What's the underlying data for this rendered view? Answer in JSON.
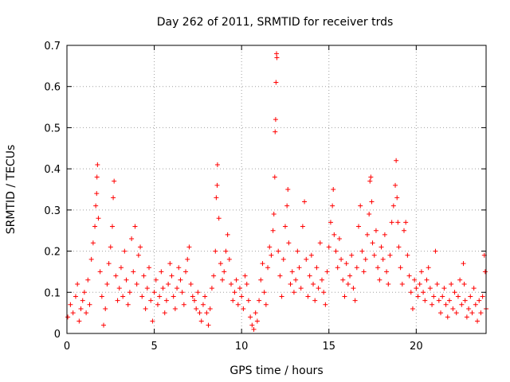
{
  "chart_data": {
    "type": "scatter",
    "title": "Day 262 of 2011, SRMTID for receiver trds",
    "xlabel": "GPS time / hours",
    "ylabel": "SRMTID / TECUs",
    "xlim": [
      0,
      24
    ],
    "ylim": [
      0,
      0.7
    ],
    "x_ticks": [
      "0",
      "5",
      "10",
      "15",
      "20"
    ],
    "y_ticks": [
      "0",
      "0.1",
      "0.2",
      "0.3",
      "0.4",
      "0.5",
      "0.6",
      "0.7"
    ],
    "grid": true,
    "marker": "+",
    "color": "#ff0000",
    "series": [
      {
        "name": "SRMTID",
        "points": [
          [
            0.05,
            0.04
          ],
          [
            0.2,
            0.07
          ],
          [
            0.35,
            0.05
          ],
          [
            0.5,
            0.09
          ],
          [
            0.6,
            0.12
          ],
          [
            0.7,
            0.03
          ],
          [
            0.8,
            0.06
          ],
          [
            0.9,
            0.08
          ],
          [
            1.0,
            0.1
          ],
          [
            1.1,
            0.05
          ],
          [
            1.2,
            0.13
          ],
          [
            1.3,
            0.07
          ],
          [
            1.4,
            0.18
          ],
          [
            1.5,
            0.22
          ],
          [
            1.6,
            0.26
          ],
          [
            1.65,
            0.31
          ],
          [
            1.7,
            0.34
          ],
          [
            1.72,
            0.38
          ],
          [
            1.75,
            0.41
          ],
          [
            1.8,
            0.28
          ],
          [
            1.9,
            0.15
          ],
          [
            2.0,
            0.09
          ],
          [
            2.1,
            0.02
          ],
          [
            2.2,
            0.06
          ],
          [
            2.3,
            0.12
          ],
          [
            2.4,
            0.17
          ],
          [
            2.5,
            0.21
          ],
          [
            2.6,
            0.26
          ],
          [
            2.65,
            0.33
          ],
          [
            2.7,
            0.37
          ],
          [
            2.8,
            0.14
          ],
          [
            2.9,
            0.08
          ],
          [
            3.0,
            0.11
          ],
          [
            3.1,
            0.16
          ],
          [
            3.2,
            0.09
          ],
          [
            3.3,
            0.2
          ],
          [
            3.4,
            0.13
          ],
          [
            3.5,
            0.07
          ],
          [
            3.6,
            0.1
          ],
          [
            3.7,
            0.23
          ],
          [
            3.8,
            0.15
          ],
          [
            3.9,
            0.26
          ],
          [
            4.0,
            0.12
          ],
          [
            4.1,
            0.19
          ],
          [
            4.2,
            0.21
          ],
          [
            4.3,
            0.09
          ],
          [
            4.4,
            0.14
          ],
          [
            4.5,
            0.06
          ],
          [
            4.6,
            0.11
          ],
          [
            4.7,
            0.16
          ],
          [
            4.8,
            0.08
          ],
          [
            4.9,
            0.03
          ],
          [
            5.0,
            0.1
          ],
          [
            5.1,
            0.13
          ],
          [
            5.2,
            0.07
          ],
          [
            5.3,
            0.09
          ],
          [
            5.4,
            0.15
          ],
          [
            5.5,
            0.11
          ],
          [
            5.6,
            0.05
          ],
          [
            5.7,
            0.08
          ],
          [
            5.8,
            0.12
          ],
          [
            5.9,
            0.17
          ],
          [
            6.0,
            0.14
          ],
          [
            6.1,
            0.09
          ],
          [
            6.2,
            0.06
          ],
          [
            6.3,
            0.11
          ],
          [
            6.4,
            0.16
          ],
          [
            6.5,
            0.13
          ],
          [
            6.6,
            0.1
          ],
          [
            6.7,
            0.07
          ],
          [
            6.8,
            0.15
          ],
          [
            6.9,
            0.18
          ],
          [
            7.0,
            0.21
          ],
          [
            7.1,
            0.12
          ],
          [
            7.2,
            0.09
          ],
          [
            7.3,
            0.08
          ],
          [
            7.4,
            0.06
          ],
          [
            7.5,
            0.1
          ],
          [
            7.6,
            0.05
          ],
          [
            7.7,
            0.03
          ],
          [
            7.8,
            0.07
          ],
          [
            7.9,
            0.09
          ],
          [
            8.0,
            0.05
          ],
          [
            8.1,
            0.02
          ],
          [
            8.2,
            0.06
          ],
          [
            8.3,
            0.11
          ],
          [
            8.4,
            0.14
          ],
          [
            8.5,
            0.2
          ],
          [
            8.55,
            0.33
          ],
          [
            8.6,
            0.36
          ],
          [
            8.62,
            0.41
          ],
          [
            8.7,
            0.28
          ],
          [
            8.8,
            0.17
          ],
          [
            8.9,
            0.13
          ],
          [
            9.0,
            0.15
          ],
          [
            9.1,
            0.2
          ],
          [
            9.2,
            0.24
          ],
          [
            9.3,
            0.18
          ],
          [
            9.4,
            0.12
          ],
          [
            9.5,
            0.08
          ],
          [
            9.6,
            0.1
          ],
          [
            9.7,
            0.13
          ],
          [
            9.8,
            0.07
          ],
          [
            9.9,
            0.11
          ],
          [
            10.0,
            0.09
          ],
          [
            10.1,
            0.06
          ],
          [
            10.2,
            0.14
          ],
          [
            10.3,
            0.12
          ],
          [
            10.4,
            0.08
          ],
          [
            10.5,
            0.04
          ],
          [
            10.6,
            0.02
          ],
          [
            10.7,
            0.01
          ],
          [
            10.8,
            0.05
          ],
          [
            10.9,
            0.03
          ],
          [
            11.0,
            0.08
          ],
          [
            11.1,
            0.13
          ],
          [
            11.2,
            0.17
          ],
          [
            11.3,
            0.1
          ],
          [
            11.4,
            0.07
          ],
          [
            11.5,
            0.16
          ],
          [
            11.6,
            0.21
          ],
          [
            11.7,
            0.19
          ],
          [
            11.8,
            0.25
          ],
          [
            11.85,
            0.29
          ],
          [
            11.9,
            0.38
          ],
          [
            11.92,
            0.49
          ],
          [
            11.95,
            0.52
          ],
          [
            11.97,
            0.61
          ],
          [
            12.0,
            0.68
          ],
          [
            12.02,
            0.67
          ],
          [
            12.1,
            0.2
          ],
          [
            12.2,
            0.14
          ],
          [
            12.3,
            0.09
          ],
          [
            12.4,
            0.18
          ],
          [
            12.5,
            0.26
          ],
          [
            12.6,
            0.31
          ],
          [
            12.65,
            0.35
          ],
          [
            12.7,
            0.22
          ],
          [
            12.8,
            0.12
          ],
          [
            12.9,
            0.15
          ],
          [
            13.0,
            0.1
          ],
          [
            13.1,
            0.13
          ],
          [
            13.2,
            0.2
          ],
          [
            13.3,
            0.16
          ],
          [
            13.4,
            0.11
          ],
          [
            13.5,
            0.26
          ],
          [
            13.6,
            0.32
          ],
          [
            13.7,
            0.18
          ],
          [
            13.8,
            0.09
          ],
          [
            13.9,
            0.14
          ],
          [
            14.0,
            0.19
          ],
          [
            14.1,
            0.12
          ],
          [
            14.2,
            0.08
          ],
          [
            14.3,
            0.16
          ],
          [
            14.4,
            0.11
          ],
          [
            14.5,
            0.22
          ],
          [
            14.6,
            0.13
          ],
          [
            14.7,
            0.1
          ],
          [
            14.8,
            0.07
          ],
          [
            14.9,
            0.15
          ],
          [
            15.0,
            0.21
          ],
          [
            15.1,
            0.27
          ],
          [
            15.2,
            0.31
          ],
          [
            15.25,
            0.35
          ],
          [
            15.3,
            0.24
          ],
          [
            15.4,
            0.2
          ],
          [
            15.5,
            0.16
          ],
          [
            15.6,
            0.23
          ],
          [
            15.7,
            0.18
          ],
          [
            15.8,
            0.13
          ],
          [
            15.9,
            0.09
          ],
          [
            16.0,
            0.17
          ],
          [
            16.1,
            0.12
          ],
          [
            16.2,
            0.14
          ],
          [
            16.3,
            0.19
          ],
          [
            16.4,
            0.11
          ],
          [
            16.5,
            0.08
          ],
          [
            16.6,
            0.16
          ],
          [
            16.7,
            0.26
          ],
          [
            16.8,
            0.31
          ],
          [
            16.9,
            0.2
          ],
          [
            17.0,
            0.15
          ],
          [
            17.1,
            0.18
          ],
          [
            17.2,
            0.24
          ],
          [
            17.3,
            0.29
          ],
          [
            17.35,
            0.37
          ],
          [
            17.4,
            0.38
          ],
          [
            17.45,
            0.32
          ],
          [
            17.5,
            0.22
          ],
          [
            17.6,
            0.19
          ],
          [
            17.7,
            0.25
          ],
          [
            17.8,
            0.16
          ],
          [
            17.9,
            0.13
          ],
          [
            18.0,
            0.21
          ],
          [
            18.1,
            0.18
          ],
          [
            18.2,
            0.24
          ],
          [
            18.3,
            0.15
          ],
          [
            18.4,
            0.12
          ],
          [
            18.5,
            0.19
          ],
          [
            18.6,
            0.27
          ],
          [
            18.7,
            0.31
          ],
          [
            18.8,
            0.36
          ],
          [
            18.85,
            0.42
          ],
          [
            18.9,
            0.33
          ],
          [
            18.95,
            0.27
          ],
          [
            19.0,
            0.21
          ],
          [
            19.1,
            0.16
          ],
          [
            19.2,
            0.12
          ],
          [
            19.3,
            0.25
          ],
          [
            19.4,
            0.27
          ],
          [
            19.5,
            0.19
          ],
          [
            19.6,
            0.14
          ],
          [
            19.7,
            0.1
          ],
          [
            19.8,
            0.06
          ],
          [
            19.9,
            0.13
          ],
          [
            20.0,
            0.11
          ],
          [
            20.1,
            0.09
          ],
          [
            20.2,
            0.12
          ],
          [
            20.3,
            0.15
          ],
          [
            20.4,
            0.1
          ],
          [
            20.5,
            0.08
          ],
          [
            20.6,
            0.13
          ],
          [
            20.7,
            0.16
          ],
          [
            20.8,
            0.11
          ],
          [
            20.9,
            0.07
          ],
          [
            21.0,
            0.09
          ],
          [
            21.1,
            0.2
          ],
          [
            21.2,
            0.12
          ],
          [
            21.3,
            0.08
          ],
          [
            21.4,
            0.05
          ],
          [
            21.5,
            0.09
          ],
          [
            21.6,
            0.11
          ],
          [
            21.7,
            0.07
          ],
          [
            21.8,
            0.04
          ],
          [
            21.9,
            0.08
          ],
          [
            22.0,
            0.12
          ],
          [
            22.1,
            0.06
          ],
          [
            22.2,
            0.1
          ],
          [
            22.3,
            0.05
          ],
          [
            22.4,
            0.09
          ],
          [
            22.5,
            0.13
          ],
          [
            22.6,
            0.07
          ],
          [
            22.7,
            0.17
          ],
          [
            22.75,
            0.12
          ],
          [
            22.8,
            0.08
          ],
          [
            22.9,
            0.04
          ],
          [
            23.0,
            0.06
          ],
          [
            23.1,
            0.09
          ],
          [
            23.2,
            0.05
          ],
          [
            23.3,
            0.11
          ],
          [
            23.4,
            0.07
          ],
          [
            23.5,
            0.03
          ],
          [
            23.6,
            0.08
          ],
          [
            23.7,
            0.05
          ],
          [
            23.8,
            0.09
          ],
          [
            23.9,
            0.19
          ],
          [
            23.95,
            0.15
          ],
          [
            24.0,
            0.06
          ]
        ]
      }
    ]
  }
}
